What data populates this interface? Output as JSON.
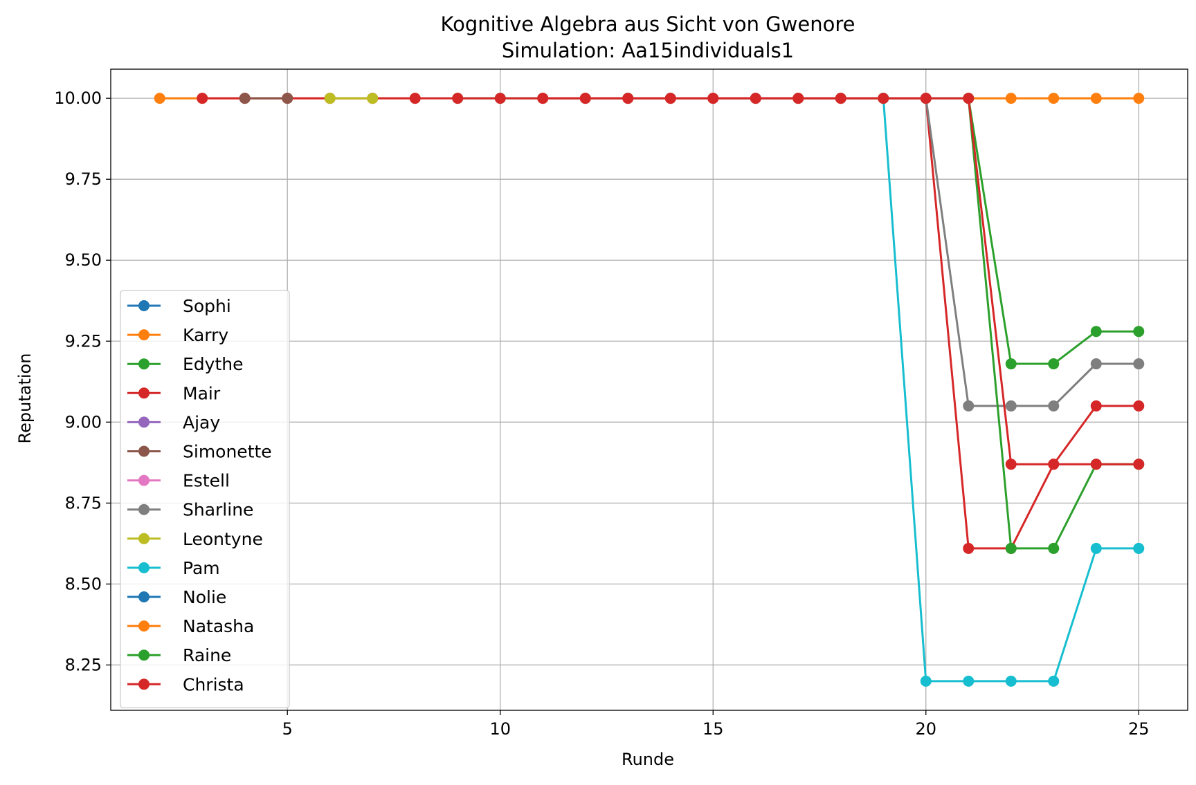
{
  "chart_data": {
    "type": "line",
    "title": "Kognitive Algebra aus Sicht von Gwenore",
    "subtitle": "Simulation: Aa15individuals1",
    "xlabel": "Runde",
    "ylabel": "Reputation",
    "xlim": [
      0.85,
      26.15
    ],
    "ylim": [
      8.11,
      10.09
    ],
    "xticks": [
      5,
      10,
      15,
      20,
      25
    ],
    "yticks": [
      8.25,
      8.5,
      8.75,
      9.0,
      9.25,
      9.5,
      9.75,
      10.0
    ],
    "ytick_labels": [
      "8.25",
      "8.50",
      "8.75",
      "9.00",
      "9.25",
      "9.50",
      "9.75",
      "10.00"
    ],
    "grid": true,
    "legend_position": "lower-left",
    "series": [
      {
        "name": "Sophi",
        "color": "#1f77b4",
        "x": [],
        "y": []
      },
      {
        "name": "Karry",
        "color": "#ff7f0e",
        "x": [
          2,
          3,
          4,
          5,
          6,
          7,
          8
        ],
        "y": [
          10,
          10,
          10,
          10,
          10,
          10,
          10
        ]
      },
      {
        "name": "Edythe",
        "color": "#2ca02c",
        "x": [
          9,
          10,
          11,
          12,
          13,
          14,
          15,
          16,
          17,
          18,
          19,
          20,
          21,
          22,
          23,
          24,
          25
        ],
        "y": [
          10,
          10,
          10,
          10,
          10,
          10,
          10,
          10,
          10,
          10,
          10,
          10,
          10,
          9.18,
          9.18,
          9.28,
          9.28
        ]
      },
      {
        "name": "Mair",
        "color": "#d62728",
        "x": [
          3,
          4,
          5,
          6,
          7,
          8,
          9,
          10,
          11,
          12,
          13,
          14,
          15,
          16,
          17,
          18,
          19,
          20,
          21,
          22,
          23,
          24,
          25
        ],
        "y": [
          10,
          10,
          10,
          10,
          10,
          10,
          10,
          10,
          10,
          10,
          10,
          10,
          10,
          10,
          10,
          10,
          10,
          10,
          8.61,
          8.61,
          8.87,
          9.05,
          9.05
        ]
      },
      {
        "name": "Ajay",
        "color": "#9467bd",
        "x": [],
        "y": []
      },
      {
        "name": "Simonette",
        "color": "#8c564b",
        "x": [
          4,
          5
        ],
        "y": [
          10,
          10
        ]
      },
      {
        "name": "Estell",
        "color": "#e377c2",
        "x": [],
        "y": []
      },
      {
        "name": "Sharline",
        "color": "#7f7f7f",
        "x": [
          20,
          21,
          22,
          23,
          24,
          25
        ],
        "y": [
          10,
          9.05,
          9.05,
          9.05,
          9.18,
          9.18
        ]
      },
      {
        "name": "Leontyne",
        "color": "#bcbd22",
        "x": [
          6,
          7
        ],
        "y": [
          10,
          10
        ]
      },
      {
        "name": "Pam",
        "color": "#17becf",
        "x": [
          19,
          20,
          21,
          22,
          23,
          24,
          25
        ],
        "y": [
          10,
          8.2,
          8.2,
          8.2,
          8.2,
          8.61,
          8.61
        ]
      },
      {
        "name": "Nolie",
        "color": "#1f77b4",
        "x": [],
        "y": []
      },
      {
        "name": "Natasha",
        "color": "#ff7f0e",
        "x": [
          21,
          22,
          23,
          24,
          25
        ],
        "y": [
          10,
          10,
          10,
          10,
          10
        ]
      },
      {
        "name": "Raine",
        "color": "#2ca02c",
        "x": [
          21,
          22,
          23,
          24,
          25
        ],
        "y": [
          10,
          8.61,
          8.61,
          8.87,
          8.87
        ]
      },
      {
        "name": "Christa",
        "color": "#d62728",
        "x": [
          11,
          12,
          13,
          14,
          15,
          16,
          17,
          18,
          19,
          20,
          21,
          22,
          23,
          24,
          25
        ],
        "y": [
          10,
          10,
          10,
          10,
          10,
          10,
          10,
          10,
          10,
          10,
          10,
          8.87,
          8.87,
          8.87,
          8.87
        ]
      }
    ]
  }
}
